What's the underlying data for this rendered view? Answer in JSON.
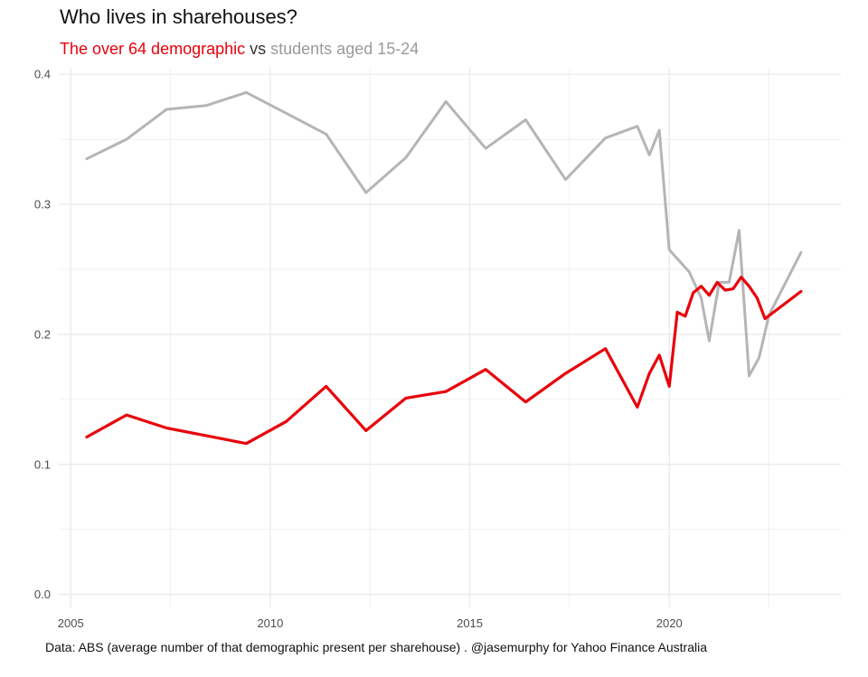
{
  "title": "Who lives in sharehouses?",
  "subtitle": {
    "part1": "The over 64 demographic",
    "part2": " vs ",
    "part3": "students aged 15-24"
  },
  "caption": "Data: ABS (average number of that demographic present per sharehouse) . @jasemurphy for Yahoo Finance Australia",
  "colors": {
    "over64": "#e8000b",
    "students": "#b5b5b5",
    "grid": "#ebebeb"
  },
  "chart_data": {
    "type": "line",
    "title": "Who lives in sharehouses?",
    "xlabel": "",
    "ylabel": "",
    "xlim": [
      2004.7,
      2024.3
    ],
    "ylim": [
      -0.01,
      0.405
    ],
    "x_ticks": [
      2005,
      2010,
      2015,
      2020
    ],
    "y_ticks": [
      0.0,
      0.1,
      0.2,
      0.3,
      0.4
    ],
    "x_tick_labels": [
      "2005",
      "2010",
      "2015",
      "2020"
    ],
    "y_tick_labels": [
      "0.0",
      "0.1",
      "0.2",
      "0.3",
      "0.4"
    ],
    "grid": true,
    "legend": "subtitle",
    "series": [
      {
        "name": "students aged 15-24",
        "color": "#b5b5b5",
        "x": [
          2005.4,
          2006.4,
          2007.4,
          2008.4,
          2009.4,
          2010.4,
          2011.4,
          2012.4,
          2013.4,
          2014.4,
          2015.4,
          2016.4,
          2017.4,
          2018.4,
          2019.2,
          2019.5,
          2019.75,
          2020.0,
          2020.5,
          2020.8,
          2021.0,
          2021.25,
          2021.5,
          2021.75,
          2022.0,
          2022.25,
          2022.5,
          2023.3
        ],
        "y": [
          0.335,
          0.35,
          0.373,
          0.376,
          0.386,
          0.37,
          0.354,
          0.309,
          0.336,
          0.379,
          0.343,
          0.365,
          0.319,
          0.351,
          0.36,
          0.338,
          0.357,
          0.265,
          0.248,
          0.228,
          0.195,
          0.24,
          0.24,
          0.28,
          0.168,
          0.182,
          0.215,
          0.263
        ]
      },
      {
        "name": "The over 64 demographic",
        "color": "#e8000b",
        "x": [
          2005.4,
          2006.4,
          2007.4,
          2008.4,
          2009.4,
          2010.4,
          2011.4,
          2012.4,
          2013.4,
          2014.4,
          2015.4,
          2016.4,
          2017.4,
          2018.4,
          2019.2,
          2019.5,
          2019.75,
          2020.0,
          2020.2,
          2020.4,
          2020.6,
          2020.8,
          2021.0,
          2021.2,
          2021.4,
          2021.6,
          2021.8,
          2022.0,
          2022.2,
          2022.4,
          2023.3
        ],
        "y": [
          0.121,
          0.138,
          0.128,
          0.122,
          0.116,
          0.133,
          0.16,
          0.126,
          0.151,
          0.156,
          0.173,
          0.148,
          0.17,
          0.189,
          0.144,
          0.17,
          0.184,
          0.16,
          0.217,
          0.214,
          0.232,
          0.237,
          0.23,
          0.24,
          0.234,
          0.235,
          0.244,
          0.237,
          0.228,
          0.212,
          0.233
        ]
      }
    ]
  }
}
